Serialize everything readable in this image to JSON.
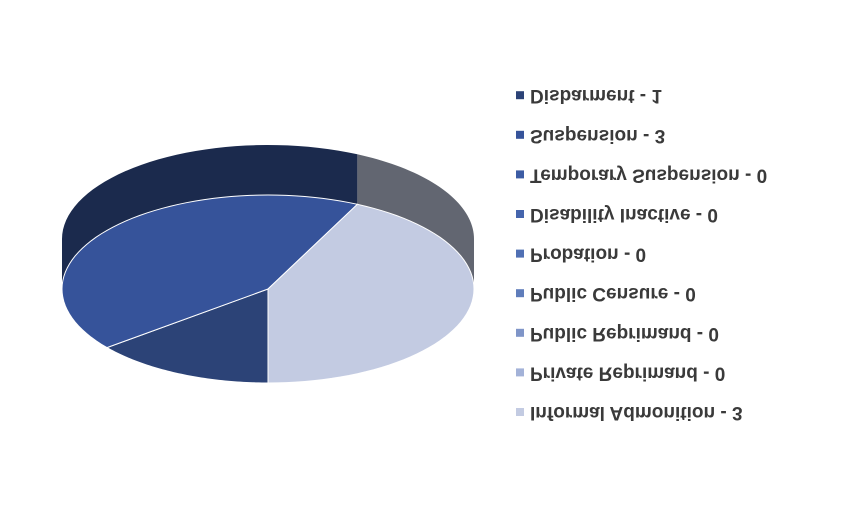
{
  "chart_data": {
    "type": "pie3d",
    "categories": [
      "Disbarment - 1",
      "Suspension - 3",
      "Temporary Suspension - 0",
      "Disability Inactive - 0",
      "Probation - 0",
      "Public Censure - 0",
      "Public Reprimand - 0",
      "Private Reprimand - 0",
      "Informal Admonition - 3"
    ],
    "values": [
      1,
      3,
      0,
      0,
      0,
      0,
      0,
      0,
      3
    ],
    "colors": [
      "#2c4377",
      "#36539a",
      "#3c5ca4",
      "#4565ad",
      "#5070b4",
      "#5f7dbb",
      "#7f95c8",
      "#a3b2d8",
      "#c3cbe2"
    ]
  }
}
